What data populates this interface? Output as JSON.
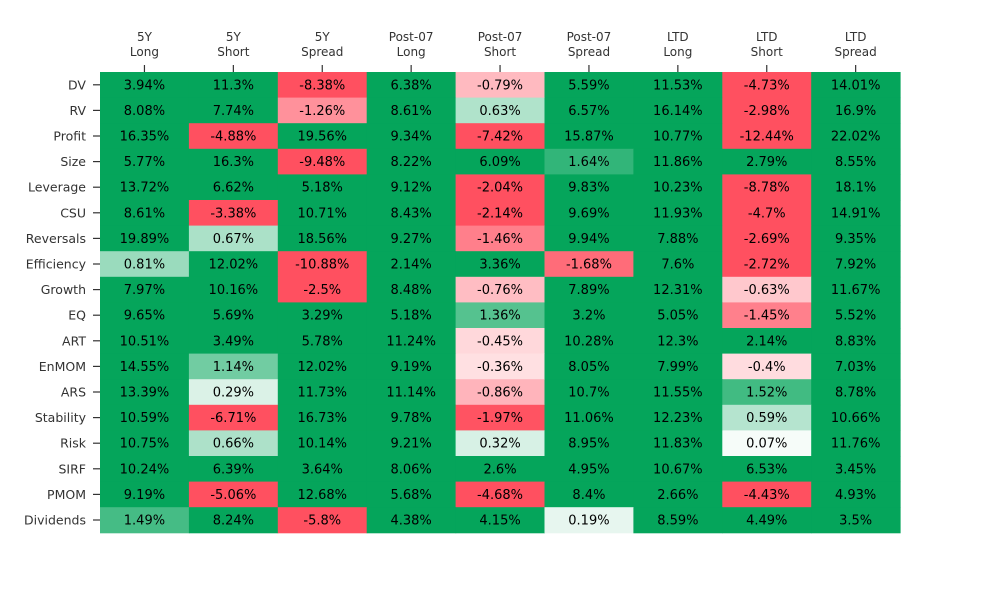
{
  "chart_data": {
    "type": "heatmap",
    "columns": [
      [
        "5Y",
        "Long"
      ],
      [
        "5Y",
        "Short"
      ],
      [
        "5Y",
        "Spread"
      ],
      [
        "Post-07",
        "Long"
      ],
      [
        "Post-07",
        "Short"
      ],
      [
        "Post-07",
        "Spread"
      ],
      [
        "LTD",
        "Long"
      ],
      [
        "LTD",
        "Short"
      ],
      [
        "LTD",
        "Spread"
      ]
    ],
    "rows": [
      "DV",
      "RV",
      "Profit",
      "Size",
      "Leverage",
      "CSU",
      "Reversals",
      "Efficiency",
      "Growth",
      "EQ",
      "ART",
      "EnMOM",
      "ARS",
      "Stability",
      "Risk",
      "SIRF",
      "PMOM",
      "Dividends"
    ],
    "values": [
      [
        3.94,
        11.3,
        -8.38,
        6.38,
        -0.79,
        5.59,
        11.53,
        -4.73,
        14.01
      ],
      [
        8.08,
        7.74,
        -1.26,
        8.61,
        0.63,
        6.57,
        16.14,
        -2.98,
        16.9
      ],
      [
        16.35,
        -4.88,
        19.56,
        9.34,
        -7.42,
        15.87,
        10.77,
        -12.44,
        22.02
      ],
      [
        5.77,
        16.3,
        -9.48,
        8.22,
        6.09,
        1.64,
        11.86,
        2.79,
        8.55
      ],
      [
        13.72,
        6.62,
        5.18,
        9.12,
        -2.04,
        9.83,
        10.23,
        -8.78,
        18.1
      ],
      [
        8.61,
        -3.38,
        10.71,
        8.43,
        -2.14,
        9.69,
        11.93,
        -4.7,
        14.91
      ],
      [
        19.89,
        0.67,
        18.56,
        9.27,
        -1.46,
        9.94,
        7.88,
        -2.69,
        9.35
      ],
      [
        0.81,
        12.02,
        -10.88,
        2.14,
        3.36,
        -1.68,
        7.6,
        -2.72,
        7.92
      ],
      [
        7.97,
        10.16,
        -2.5,
        8.48,
        -0.76,
        7.89,
        12.31,
        -0.63,
        11.67
      ],
      [
        9.65,
        5.69,
        3.29,
        5.18,
        1.36,
        3.2,
        5.05,
        -1.45,
        5.52
      ],
      [
        10.51,
        3.49,
        5.78,
        11.24,
        -0.45,
        10.28,
        12.3,
        2.14,
        8.83
      ],
      [
        14.55,
        1.14,
        12.02,
        9.19,
        -0.36,
        8.05,
        7.99,
        -0.4,
        7.03
      ],
      [
        13.39,
        0.29,
        11.73,
        11.14,
        -0.86,
        10.7,
        11.55,
        1.52,
        8.78
      ],
      [
        10.59,
        -6.71,
        16.73,
        9.78,
        -1.97,
        11.06,
        12.23,
        0.59,
        10.66
      ],
      [
        10.75,
        0.66,
        10.14,
        9.21,
        0.32,
        8.95,
        11.83,
        0.07,
        11.76
      ],
      [
        10.24,
        6.39,
        3.64,
        8.06,
        2.6,
        4.95,
        10.67,
        6.53,
        3.45
      ],
      [
        9.19,
        -5.06,
        12.68,
        5.68,
        -4.68,
        8.4,
        2.66,
        -4.43,
        4.93
      ],
      [
        1.49,
        8.24,
        -5.8,
        4.38,
        4.15,
        0.19,
        8.59,
        4.49,
        3.5
      ]
    ],
    "value_suffix": "%",
    "color_range": [
      -2,
      2
    ],
    "colors": {
      "negative": "#ff5060",
      "zero": "#ffffff",
      "positive": "#05a55b",
      "text": "#000000",
      "label": "#333333"
    }
  }
}
